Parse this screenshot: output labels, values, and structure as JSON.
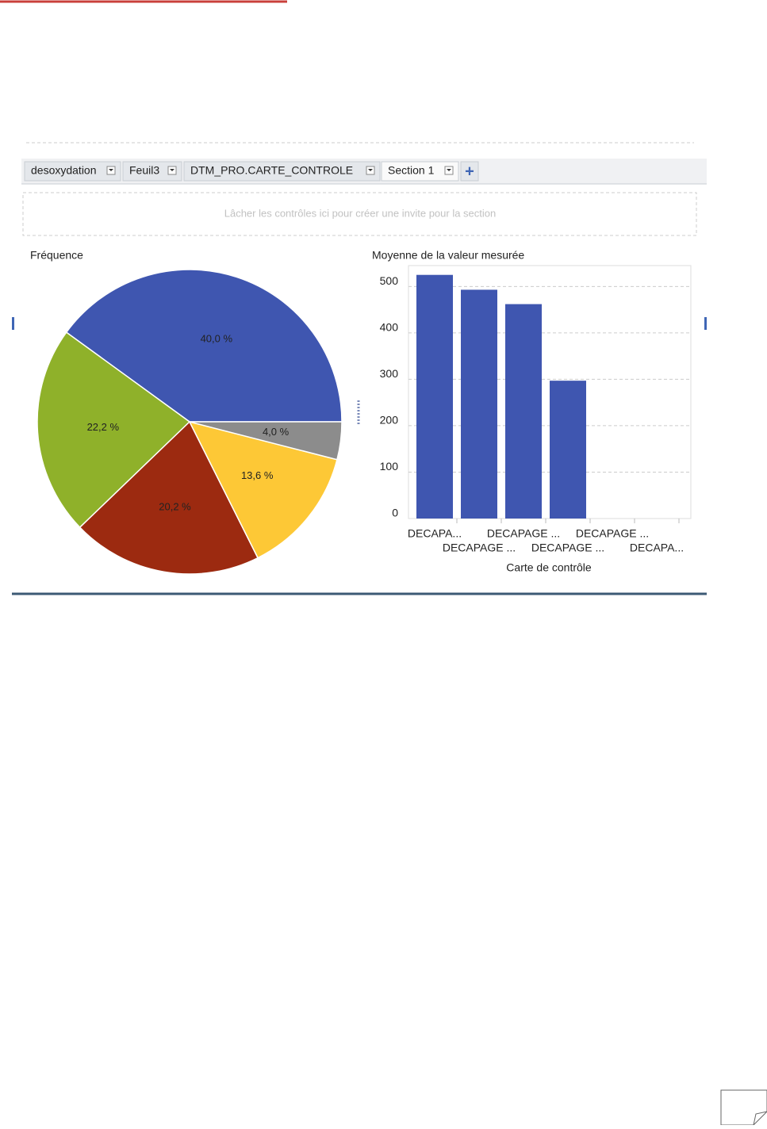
{
  "tabs": [
    "desoxydation",
    "Feuil3",
    "DTM_PRO.CARTE_CONTROLE",
    "Section 1"
  ],
  "drop_zone": "Lâcher les contrôles ici pour créer une invite pour la section",
  "chart_data": [
    {
      "type": "pie",
      "title": "Fréquence",
      "values": [
        40.0,
        22.2,
        20.2,
        13.6,
        4.0
      ],
      "value_labels": [
        "40,0 %",
        "22,2 %",
        "20,2 %",
        "13,6 %",
        "4,0 %"
      ],
      "colors": [
        "#3f56b0",
        "#8fb12a",
        "#9c2a10",
        "#fdc836",
        "#8c8c8c"
      ],
      "start_angle": 0,
      "direction": "counterclockwise"
    },
    {
      "type": "bar",
      "title": "Moyenne de la valeur mesurée",
      "x_label": "Carte de contrôle",
      "categories": [
        "DECAPA...",
        "DECAPAGE ...",
        "DECAPAGE ...",
        "DECAPAGE ...",
        "DECAPAGE ...",
        "DECAPA..."
      ],
      "values": [
        525,
        493,
        462,
        297,
        null,
        null
      ],
      "color": "#3f56b0",
      "ylim": [
        0,
        545
      ],
      "yticks": [
        0,
        100,
        200,
        300,
        400,
        500
      ],
      "grid": true
    }
  ]
}
